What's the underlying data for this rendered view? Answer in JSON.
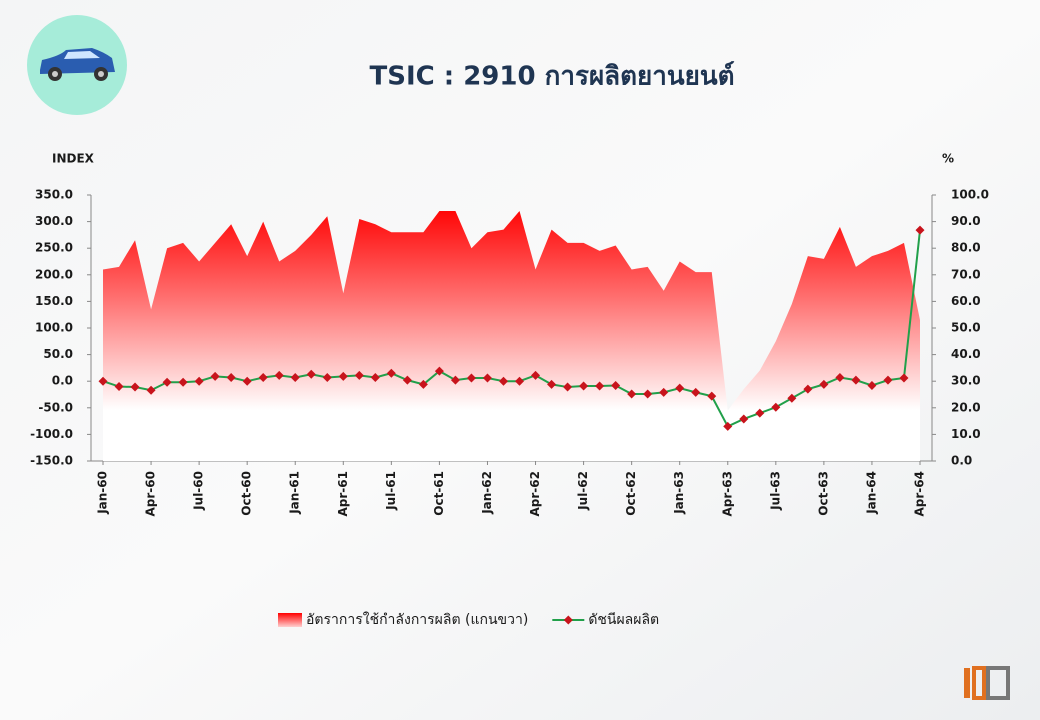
{
  "chart_data": {
    "type": "area-line",
    "title": "TSIC : 2910 การผลิตยานยนต์",
    "y_label": "INDEX",
    "y2_label": "%",
    "categories": [
      "Jan-60",
      null,
      null,
      "Apr-60",
      null,
      null,
      "Jul-60",
      null,
      null,
      "Oct-60",
      null,
      null,
      "Jan-61",
      null,
      null,
      "Apr-61",
      null,
      null,
      "Jul-61",
      null,
      null,
      "Oct-61",
      null,
      null,
      "Jan-62",
      null,
      null,
      "Apr-62",
      null,
      null,
      "Jul-62",
      null,
      null,
      "Oct-62",
      null,
      null,
      "Jan-63",
      null,
      null,
      "Apr-63",
      null,
      null,
      "Jul-63",
      null,
      null,
      "Oct-63",
      null,
      null,
      "Jan-64",
      null,
      null,
      "Apr-64"
    ],
    "series": [
      {
        "name": "อัตราการใช้กำลังการผลิต (แกนขวา)",
        "kind": "area",
        "axis": "y2",
        "color": "#ff0000",
        "values": [
          72,
          73,
          83,
          57,
          80,
          82,
          75,
          82,
          89,
          77,
          90,
          75,
          79,
          85,
          92,
          63,
          91,
          89,
          86,
          86,
          86,
          94,
          94,
          80,
          86,
          87,
          94,
          72,
          87,
          82,
          82,
          79,
          81,
          72,
          73,
          64,
          75,
          71,
          71,
          19,
          27,
          34,
          45,
          59,
          77,
          76,
          88,
          73,
          77,
          79,
          82,
          53
        ]
      },
      {
        "name": "ดัชนีผลผลิต",
        "kind": "line",
        "color": "#21a04a",
        "marker_color": "#c8141c",
        "values": [
          0,
          -10,
          -11,
          -17,
          -2,
          -2,
          0,
          9,
          7,
          0,
          7,
          11,
          7,
          13,
          7,
          9,
          11,
          7,
          15,
          2,
          -6,
          19,
          2,
          6,
          6,
          0,
          0,
          11,
          -6,
          -11,
          -9,
          -9,
          -8,
          -24,
          -24,
          -21,
          -13,
          -21,
          -28,
          -85,
          -71,
          -60,
          -49,
          -32,
          -15,
          -6,
          7,
          2,
          -8,
          2,
          6,
          284
        ]
      }
    ],
    "ylim": [
      -150,
      350
    ],
    "yticks": [
      {
        "value": -150,
        "label": "-150.0"
      },
      {
        "value": -100,
        "label": "-100.0"
      },
      {
        "value": -50,
        "label": "-50.0"
      },
      {
        "value": 0,
        "label": "0.0"
      },
      {
        "value": 50,
        "label": "50.0"
      },
      {
        "value": 100,
        "label": "100.0"
      },
      {
        "value": 150,
        "label": "150.0"
      },
      {
        "value": 200,
        "label": "200.0"
      },
      {
        "value": 250,
        "label": "250.0"
      },
      {
        "value": 300,
        "label": "300.0"
      },
      {
        "value": 350,
        "label": "350.0"
      }
    ],
    "y2lim": [
      0,
      100
    ],
    "y2ticks": [
      {
        "value": 0,
        "label": "0.0"
      },
      {
        "value": 10,
        "label": "10.0"
      },
      {
        "value": 20,
        "label": "20.0"
      },
      {
        "value": 30,
        "label": "30.0"
      },
      {
        "value": 40,
        "label": "40.0"
      },
      {
        "value": 50,
        "label": "50.0"
      },
      {
        "value": 60,
        "label": "60.0"
      },
      {
        "value": 70,
        "label": "70.0"
      },
      {
        "value": 80,
        "label": "80.0"
      },
      {
        "value": 90,
        "label": "90.0"
      },
      {
        "value": 100,
        "label": "100.0"
      }
    ],
    "grid": false,
    "legend": "bottom"
  }
}
